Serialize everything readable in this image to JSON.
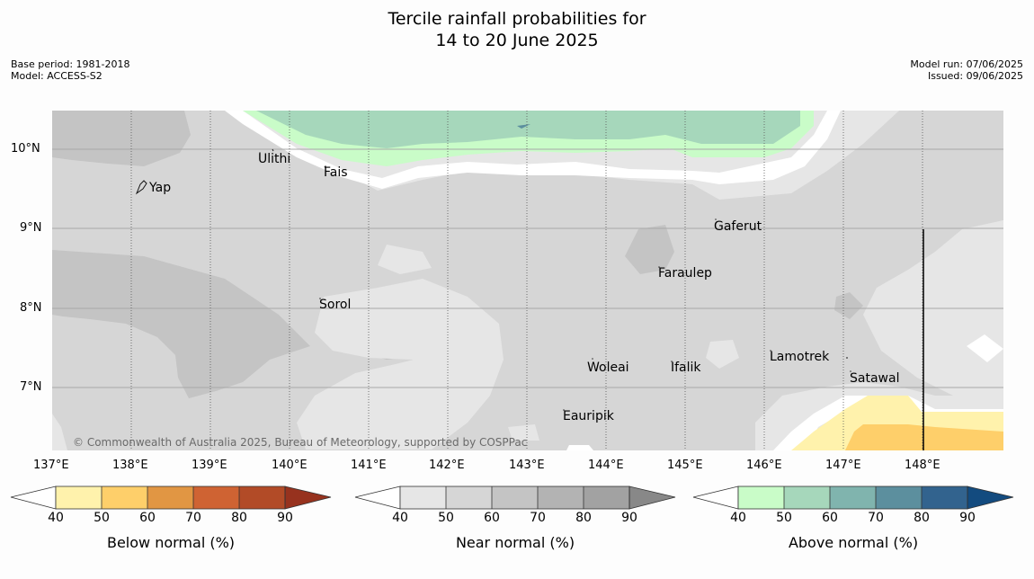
{
  "title_line1": "Tercile rainfall probabilities for",
  "title_line2": "14 to 20 June 2025",
  "meta_left": [
    "Base period: 1981-2018",
    "Model: ACCESS-S2"
  ],
  "meta_right": [
    "Model run: 07/06/2025",
    "Issued: 09/06/2025"
  ],
  "lat_labels": [
    "10°N",
    "9°N",
    "8°N",
    "7°N"
  ],
  "lon_labels": [
    "137°E",
    "138°E",
    "139°E",
    "140°E",
    "141°E",
    "142°E",
    "143°E",
    "144°E",
    "145°E",
    "146°E",
    "147°E",
    "148°E"
  ],
  "places": [
    "Yap",
    "Ulithi",
    "Fais",
    "Gaferut",
    "Faraulep",
    "Sorol",
    "Woleai",
    "Ifalik",
    "Lamotrek",
    "Satawal",
    "Eauripik"
  ],
  "copyright": "© Commonwealth of Australia 2025, Bureau of Meteorology, supported by COSPPac",
  "colorbars": [
    {
      "label": "Below normal (%)",
      "ticks": [
        "40",
        "50",
        "60",
        "70",
        "80",
        "90"
      ],
      "colors": [
        "#fff2ac",
        "#fecf6a",
        "#e19643",
        "#cf6333",
        "#b24b27",
        "#97321e"
      ]
    },
    {
      "label": "Near normal (%)",
      "ticks": [
        "40",
        "50",
        "60",
        "70",
        "80",
        "90"
      ],
      "colors": [
        "#e6e6e6",
        "#d6d6d6",
        "#c4c4c4",
        "#b3b3b3",
        "#a2a2a2",
        "#888888"
      ]
    },
    {
      "label": "Above normal (%)",
      "ticks": [
        "40",
        "50",
        "60",
        "70",
        "80",
        "90"
      ],
      "colors": [
        "#c9fcc8",
        "#a6d7bb",
        "#80b4ae",
        "#5c8f9e",
        "#32638e",
        "#134b7f"
      ]
    }
  ]
}
